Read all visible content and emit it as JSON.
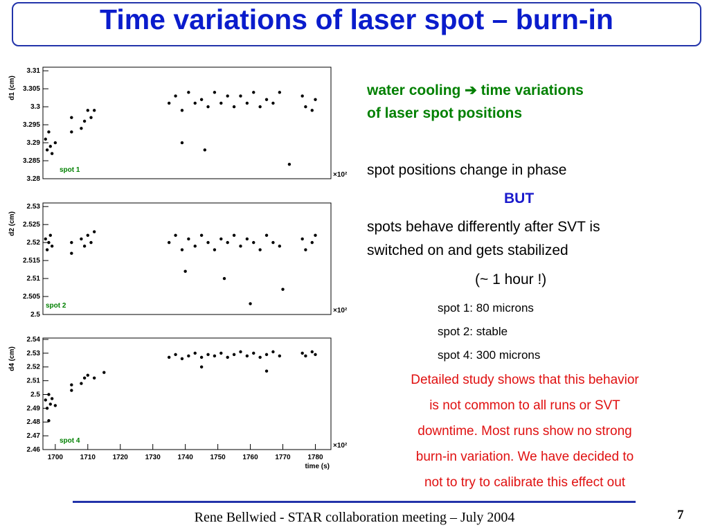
{
  "title": "Time variations of laser spot – burn-in",
  "chart_data": [
    {
      "type": "scatter",
      "ylabel": "d1 (cm)",
      "annotation": "spot 1",
      "x_multiplier": "×10²",
      "xlim": [
        1696.2,
        1784.8
      ],
      "ylim": [
        3.28,
        3.311
      ],
      "yticks": [
        3.28,
        3.285,
        3.29,
        3.295,
        3.3,
        3.305,
        3.31
      ],
      "x": [
        1697,
        1697.5,
        1698,
        1698.5,
        1699,
        1700,
        1705,
        1705,
        1708,
        1709,
        1710,
        1711,
        1712,
        1735,
        1737,
        1739,
        1741,
        1743,
        1745,
        1747,
        1749,
        1751,
        1753,
        1755,
        1757,
        1759,
        1761,
        1763,
        1765,
        1767,
        1769,
        1776,
        1777,
        1779,
        1780,
        1746,
        1739,
        1772
      ],
      "y": [
        3.291,
        3.288,
        3.293,
        3.289,
        3.287,
        3.29,
        3.293,
        3.297,
        3.294,
        3.296,
        3.299,
        3.297,
        3.299,
        3.301,
        3.303,
        3.299,
        3.304,
        3.301,
        3.302,
        3.3,
        3.304,
        3.301,
        3.303,
        3.3,
        3.303,
        3.301,
        3.304,
        3.3,
        3.302,
        3.301,
        3.304,
        3.303,
        3.3,
        3.299,
        3.302,
        3.288,
        3.29,
        3.284
      ]
    },
    {
      "type": "scatter",
      "ylabel": "d2 (cm)",
      "annotation": "spot 2",
      "x_multiplier": "×10²",
      "xlim": [
        1696.2,
        1784.8
      ],
      "ylim": [
        2.5,
        2.531
      ],
      "yticks": [
        2.5,
        2.505,
        2.51,
        2.515,
        2.52,
        2.525,
        2.53
      ],
      "x": [
        1697,
        1697.5,
        1698,
        1698.5,
        1699,
        1705,
        1705,
        1708,
        1709,
        1710,
        1711,
        1712,
        1735,
        1737,
        1739,
        1741,
        1743,
        1745,
        1747,
        1749,
        1751,
        1753,
        1755,
        1757,
        1759,
        1761,
        1763,
        1765,
        1767,
        1769,
        1776,
        1777,
        1779,
        1780,
        1740,
        1752,
        1770,
        1760
      ],
      "y": [
        2.521,
        2.518,
        2.52,
        2.522,
        2.519,
        2.52,
        2.517,
        2.521,
        2.519,
        2.522,
        2.52,
        2.523,
        2.52,
        2.522,
        2.518,
        2.521,
        2.519,
        2.522,
        2.52,
        2.518,
        2.521,
        2.52,
        2.522,
        2.519,
        2.521,
        2.52,
        2.518,
        2.522,
        2.52,
        2.519,
        2.521,
        2.518,
        2.52,
        2.522,
        2.512,
        2.51,
        2.507,
        2.503
      ]
    },
    {
      "type": "scatter",
      "ylabel": "d4 (cm)",
      "annotation": "spot 4",
      "x_multiplier": "×10²",
      "xlabel": "time (s)",
      "xlim": [
        1696.2,
        1784.8
      ],
      "ylim": [
        2.46,
        2.541
      ],
      "xticks": [
        1700,
        1710,
        1720,
        1730,
        1740,
        1750,
        1760,
        1770,
        1780
      ],
      "yticks": [
        2.46,
        2.47,
        2.48,
        2.49,
        2.5,
        2.51,
        2.52,
        2.53,
        2.54
      ],
      "x": [
        1697,
        1697.5,
        1698,
        1698.5,
        1699,
        1700,
        1705,
        1705,
        1708,
        1709,
        1710,
        1712,
        1715,
        1735,
        1737,
        1739,
        1741,
        1743,
        1745,
        1747,
        1749,
        1751,
        1753,
        1755,
        1757,
        1759,
        1761,
        1763,
        1765,
        1767,
        1769,
        1776,
        1777,
        1779,
        1780,
        1698,
        1745,
        1765
      ],
      "y": [
        2.496,
        2.49,
        2.5,
        2.493,
        2.497,
        2.492,
        2.503,
        2.507,
        2.508,
        2.512,
        2.514,
        2.512,
        2.516,
        2.527,
        2.529,
        2.526,
        2.528,
        2.53,
        2.527,
        2.529,
        2.528,
        2.53,
        2.527,
        2.529,
        2.531,
        2.528,
        2.53,
        2.527,
        2.529,
        2.531,
        2.528,
        2.53,
        2.528,
        2.531,
        2.529,
        2.481,
        2.52,
        2.517
      ]
    }
  ],
  "text": {
    "lead": [
      "water cooling  ➔  time variations",
      "of  laser spot positions"
    ],
    "p1": "spot positions change in phase",
    "but": "BUT",
    "p2": [
      "spots behave differently after SVT is",
      "switched on and gets  stabilized"
    ],
    "hour": "(~ 1 hour !)",
    "spots": [
      "spot 1: 80 microns",
      "spot 2: stable",
      "spot 4: 300 microns"
    ],
    "note": [
      "Detailed study shows that this behavior",
      "is not common to all runs or SVT",
      "downtime. Most runs show no strong",
      "burn-in variation. We have decided to",
      "not to try to calibrate this effect out"
    ]
  },
  "footer": "Rene Bellwied - STAR collaboration meeting – July 2004",
  "page": "7"
}
